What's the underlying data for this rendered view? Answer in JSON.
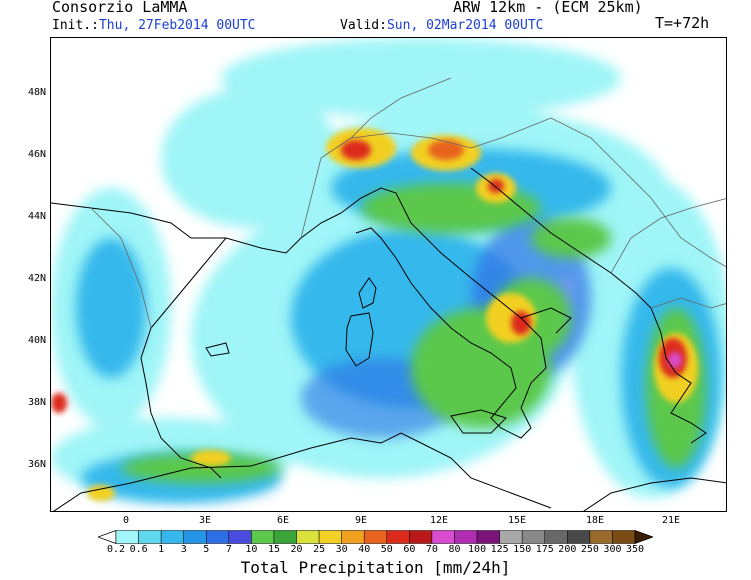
{
  "header": {
    "institution": "Consorzio LaMMA",
    "model": "ARW 12km - (ECM 25km)",
    "init_label": "Init.:",
    "init_value": "Thu, 27Feb2014 00UTC",
    "valid_label": "Valid:",
    "valid_value": "Sun, 02Mar2014 00UTC",
    "forecast_step": "T=+72h"
  },
  "map": {
    "lat_labels": [
      "48N",
      "46N",
      "44N",
      "42N",
      "40N",
      "38N",
      "36N"
    ],
    "lon_labels": [
      "0",
      "3E",
      "6E",
      "9E",
      "12E",
      "15E",
      "18E",
      "21E"
    ],
    "colors": {
      "background": "#ffffff",
      "coast": "#000000",
      "border": "#666666"
    }
  },
  "legend": {
    "title": "Total Precipitation [mm/24h]",
    "levels": [
      "0.2",
      "0.6",
      "1",
      "3",
      "5",
      "7",
      "10",
      "15",
      "20",
      "25",
      "30",
      "40",
      "50",
      "60",
      "70",
      "80",
      "100",
      "125",
      "150",
      "175",
      "200",
      "250",
      "300",
      "350"
    ],
    "colors": [
      "#9ff5f7",
      "#5fd8f0",
      "#36b8ec",
      "#2596e6",
      "#2f6fe6",
      "#4a4ce0",
      "#5cc84c",
      "#3aa43a",
      "#d8e23a",
      "#f2d024",
      "#f2a020",
      "#e8641c",
      "#dc2a1c",
      "#b81818",
      "#d84cd0",
      "#b02cb0",
      "#7a147a",
      "#a8a8a8",
      "#888888",
      "#686868",
      "#484848",
      "#9a6a2a",
      "#7a4c14",
      "#5a3208",
      "#3a1e04"
    ]
  }
}
